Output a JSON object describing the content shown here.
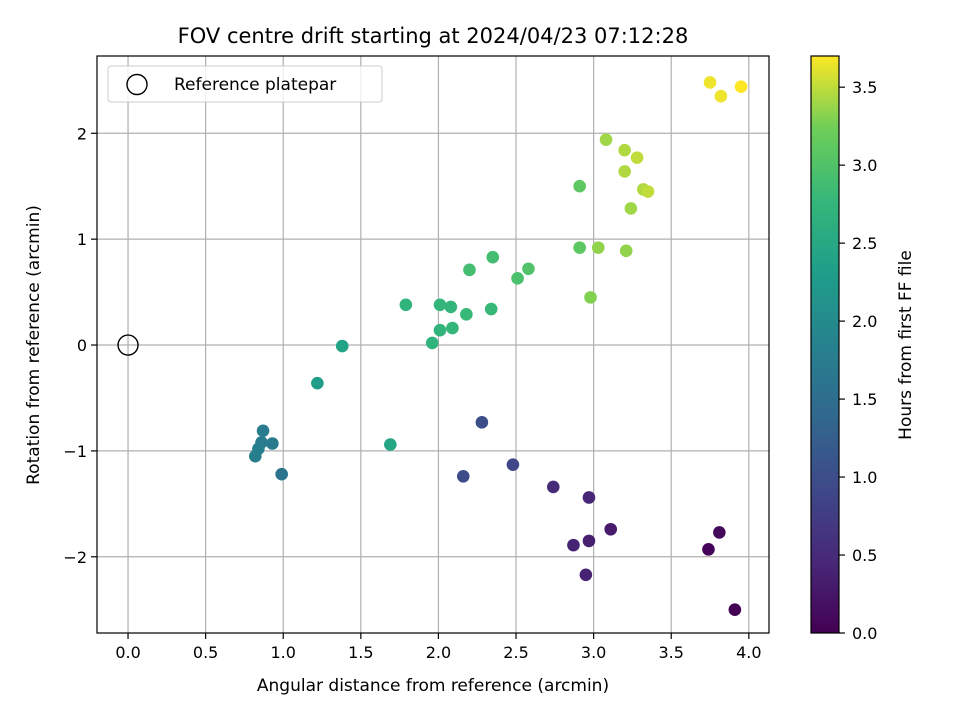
{
  "chart_data": {
    "type": "scatter",
    "title": "FOV centre drift starting at 2024/04/23 07:12:28",
    "xlabel": "Angular distance from reference (arcmin)",
    "ylabel": "Rotation from reference (arcmin)",
    "xlim": [
      -0.2,
      4.13
    ],
    "ylim": [
      -2.72,
      2.73
    ],
    "xticks": [
      0.0,
      0.5,
      1.0,
      1.5,
      2.0,
      2.5,
      3.0,
      3.5,
      4.0
    ],
    "xtick_labels": [
      "0.0",
      "0.5",
      "1.0",
      "1.5",
      "2.0",
      "2.5",
      "3.0",
      "3.5",
      "4.0"
    ],
    "yticks": [
      -2,
      -1,
      0,
      1,
      2
    ],
    "ytick_labels": [
      "−2",
      "−1",
      "0",
      "1",
      "2"
    ],
    "grid": true,
    "colormap": "viridis",
    "colorbar": {
      "label": "Hours from first FF file",
      "range": [
        0.0,
        3.7
      ],
      "ticks": [
        0.0,
        0.5,
        1.0,
        1.5,
        2.0,
        2.5,
        3.0,
        3.5
      ],
      "tick_labels": [
        "0.0",
        "0.5",
        "1.0",
        "1.5",
        "2.0",
        "2.5",
        "3.0",
        "3.5"
      ]
    },
    "legend": {
      "position": "top-left",
      "entries": [
        {
          "label": "Reference platepar",
          "marker": "open-circle"
        }
      ]
    },
    "reference_point": {
      "x": 0.0,
      "y": 0.0
    },
    "points": [
      {
        "x": 3.91,
        "y": -2.5,
        "c": 0.0
      },
      {
        "x": 3.74,
        "y": -1.93,
        "c": 0.05
      },
      {
        "x": 3.81,
        "y": -1.77,
        "c": 0.1
      },
      {
        "x": 3.11,
        "y": -1.74,
        "c": 0.3
      },
      {
        "x": 2.97,
        "y": -1.85,
        "c": 0.35
      },
      {
        "x": 2.87,
        "y": -1.89,
        "c": 0.4
      },
      {
        "x": 2.95,
        "y": -2.17,
        "c": 0.4
      },
      {
        "x": 2.97,
        "y": -1.44,
        "c": 0.45
      },
      {
        "x": 2.74,
        "y": -1.34,
        "c": 0.5
      },
      {
        "x": 2.48,
        "y": -1.13,
        "c": 0.9
      },
      {
        "x": 2.16,
        "y": -1.24,
        "c": 0.95
      },
      {
        "x": 2.28,
        "y": -0.73,
        "c": 1.0
      },
      {
        "x": 0.99,
        "y": -1.22,
        "c": 1.6
      },
      {
        "x": 0.93,
        "y": -0.93,
        "c": 1.7
      },
      {
        "x": 0.87,
        "y": -0.81,
        "c": 1.75
      },
      {
        "x": 0.86,
        "y": -0.92,
        "c": 1.75
      },
      {
        "x": 0.84,
        "y": -0.98,
        "c": 1.8
      },
      {
        "x": 0.82,
        "y": -1.05,
        "c": 1.8
      },
      {
        "x": 1.22,
        "y": -0.36,
        "c": 2.3
      },
      {
        "x": 1.38,
        "y": -0.01,
        "c": 2.4
      },
      {
        "x": 1.69,
        "y": -0.94,
        "c": 2.45
      },
      {
        "x": 1.79,
        "y": 0.38,
        "c": 2.7
      },
      {
        "x": 1.96,
        "y": 0.02,
        "c": 2.7
      },
      {
        "x": 2.01,
        "y": 0.14,
        "c": 2.7
      },
      {
        "x": 2.01,
        "y": 0.38,
        "c": 2.75
      },
      {
        "x": 2.08,
        "y": 0.36,
        "c": 2.75
      },
      {
        "x": 2.09,
        "y": 0.16,
        "c": 2.75
      },
      {
        "x": 2.18,
        "y": 0.29,
        "c": 2.8
      },
      {
        "x": 2.34,
        "y": 0.34,
        "c": 2.8
      },
      {
        "x": 2.2,
        "y": 0.71,
        "c": 2.9
      },
      {
        "x": 2.35,
        "y": 0.83,
        "c": 2.9
      },
      {
        "x": 2.51,
        "y": 0.63,
        "c": 2.95
      },
      {
        "x": 2.58,
        "y": 0.72,
        "c": 3.0
      },
      {
        "x": 2.91,
        "y": 1.5,
        "c": 3.1
      },
      {
        "x": 2.91,
        "y": 0.92,
        "c": 3.1
      },
      {
        "x": 2.98,
        "y": 0.45,
        "c": 3.3
      },
      {
        "x": 3.03,
        "y": 0.92,
        "c": 3.35
      },
      {
        "x": 3.21,
        "y": 0.89,
        "c": 3.35
      },
      {
        "x": 3.08,
        "y": 1.94,
        "c": 3.4
      },
      {
        "x": 3.2,
        "y": 1.84,
        "c": 3.45
      },
      {
        "x": 3.2,
        "y": 1.64,
        "c": 3.45
      },
      {
        "x": 3.24,
        "y": 1.29,
        "c": 3.4
      },
      {
        "x": 3.28,
        "y": 1.77,
        "c": 3.5
      },
      {
        "x": 3.32,
        "y": 1.47,
        "c": 3.45
      },
      {
        "x": 3.35,
        "y": 1.45,
        "c": 3.5
      },
      {
        "x": 3.75,
        "y": 2.48,
        "c": 3.65
      },
      {
        "x": 3.82,
        "y": 2.35,
        "c": 3.65
      },
      {
        "x": 3.95,
        "y": 2.44,
        "c": 3.7
      }
    ]
  }
}
